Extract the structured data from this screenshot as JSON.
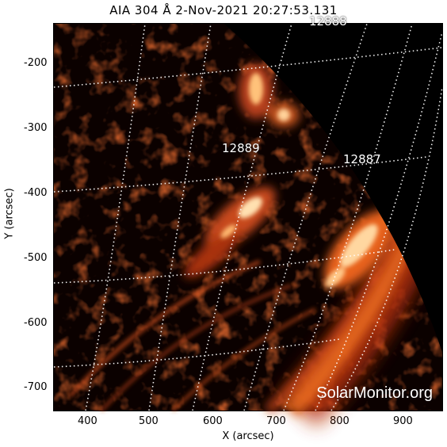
{
  "title": "AIA 304 Å   2-Nov-2021 20:27:53.131",
  "axes": {
    "xlabel": "X (arcsec)",
    "ylabel": "Y (arcsec)",
    "xticks": [
      "400",
      "500",
      "600",
      "700",
      "800",
      "900"
    ],
    "yticks": [
      "-200",
      "-300",
      "-400",
      "-500",
      "-600",
      "-700"
    ]
  },
  "active_regions": [
    {
      "id": "12888",
      "label": "12888"
    },
    {
      "id": "12889",
      "label": "12889"
    },
    {
      "id": "12887",
      "label": "12887"
    }
  ],
  "watermark": "SolarMonitor.org",
  "colors": {
    "glow": "#ffd9a0",
    "mid": "#d2501a",
    "dark": "#3a0800"
  }
}
